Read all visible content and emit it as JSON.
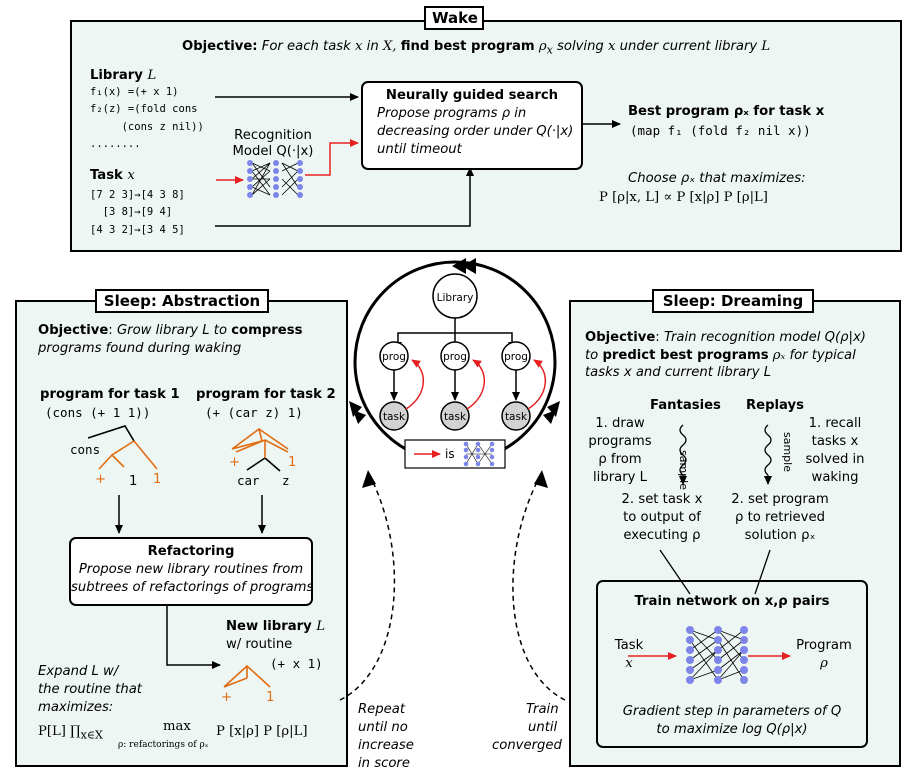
{
  "wake": {
    "title": "Wake",
    "objective_label": "Objective:",
    "objective_it1": "For each task",
    "objective_x1": "x",
    "objective_it2": "in",
    "objective_X": "X,",
    "objective_bold1": "find best program",
    "objective_rho": "ρ",
    "objective_sub": "x",
    "objective_it3": "solving",
    "objective_x2": "x",
    "objective_it4": "under current library",
    "objective_L": "L",
    "library_label": "Library",
    "library_L": "L",
    "library_lines": [
      "f₁(x) =(+ x 1)",
      "f₂(z) =(fold cons",
      "     (cons z nil))",
      "........"
    ],
    "recognition_label_1": "Recognition",
    "recognition_label_2": "Model Q(·|x)",
    "task_label": "Task",
    "task_x": "x",
    "task_lines": [
      "[7 2 3]→[4 3 8]",
      "  [3 8]→[9 4]",
      "[4 3 2]→[3 4 5]"
    ],
    "search_title": "Neurally guided search",
    "search_lines": [
      "Propose programs ρ in",
      "decreasing order under Q(·|x)",
      "until timeout"
    ],
    "best_title": "Best program ρₓ for task x",
    "best_code": "(map f₁ (fold f₂ nil x))",
    "choose_line": "Choose ρₓ that maximizes:",
    "choose_formula": "P [ρ|x, L] ∝ P [x|ρ] P [ρ|L]"
  },
  "abstraction": {
    "title": "Sleep:  Abstraction",
    "objective_label": "Objective",
    "objective_line1_it": "Grow library L to",
    "objective_line1_bold": "compress",
    "objective_line2": "programs found during waking",
    "prog1_title": "program for task 1",
    "prog1_code": "(cons (+ 1 1))",
    "prog2_title": "program for task 2",
    "prog2_code": "(+ (car z) 1)",
    "tree1_cons": "cons",
    "tree1_plus": "+",
    "tree1_one_a": "1",
    "tree1_one_b": "1",
    "tree2_plus": "+",
    "tree2_one": "1",
    "tree2_car": "car",
    "tree2_z": "z",
    "refactor_title": "Refactoring",
    "refactor_lines": [
      "Propose new library routines from",
      "subtrees of refactorings of programs"
    ],
    "newlib_title": "New library",
    "newlib_L": "L",
    "newlib_sub": "w/ routine",
    "newlib_code": "(+ x 1)",
    "newlib_plus": "+",
    "newlib_one": "1",
    "expand_lines": [
      "Expand L w/",
      "the routine that",
      "maximizes:"
    ],
    "expand_formula": "P[L] ∏",
    "expand_sub": "x∈X",
    "expand_max": "max",
    "expand_max_sub": "ρ: refactorings of ρₓ",
    "expand_tail": "P [x|ρ] P [ρ|L]"
  },
  "dreaming": {
    "title": "Sleep:  Dreaming",
    "objective_label": "Objective",
    "objective_line1": "Train recognition model Q(ρ|x)",
    "objective_line2_it": "to",
    "objective_line2_bold": "predict best programs",
    "objective_line2_rho": "ρₓ",
    "objective_line2_tail": "for typical",
    "objective_line3": "tasks x and current library L",
    "fantasies_title": "Fantasies",
    "replays_title": "Replays",
    "fant_step1": [
      "1. draw",
      "programs",
      "ρ from",
      "library L"
    ],
    "sample_label_1": "sample",
    "sample_label_2": "sample",
    "replay_step1": [
      "1. recall",
      "tasks x",
      "solved in",
      "waking"
    ],
    "fant_step2": [
      "2. set task x",
      "to output of",
      "executing ρ"
    ],
    "replay_step2": [
      "2. set program",
      "ρ to retrieved",
      "solution ρₓ"
    ],
    "train_title": "Train network on x,ρ pairs",
    "train_in_1": "Task",
    "train_in_2": "x",
    "train_out_1": "Program",
    "train_out_2": "ρ",
    "gradient_lines": [
      "Gradient step in parameters of Q",
      "to maximize log Q(ρ|x)"
    ]
  },
  "center": {
    "library_node": "Library",
    "prog_node": "prog",
    "task_node": "task",
    "legend_is": "is"
  },
  "loops": {
    "repeat_lines": [
      "Repeat",
      "until no",
      "increase",
      "in score"
    ],
    "train_lines": [
      "Train",
      "until",
      "converged"
    ]
  },
  "colors": {
    "panel_bg": "#eef6f4",
    "accent_red": "#e62020",
    "accent_orange": "#e06d12",
    "neuron_blue": "#7d86e8",
    "task_grey": "#d2d2d2"
  }
}
